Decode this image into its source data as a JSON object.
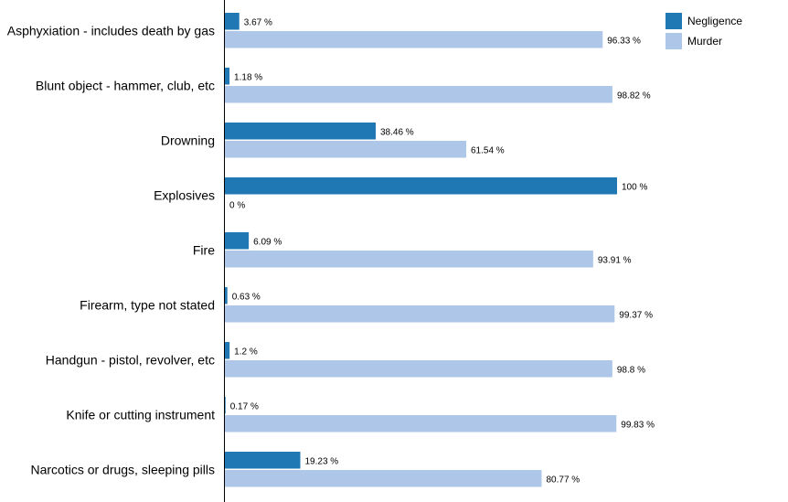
{
  "chart_data": {
    "type": "bar",
    "orientation": "horizontal",
    "categories": [
      "Asphyxiation - includes death by gas",
      "Blunt object - hammer, club, etc",
      "Drowning",
      "Explosives",
      "Fire",
      "Firearm, type not stated",
      "Handgun - pistol, revolver, etc",
      "Knife or cutting instrument",
      "Narcotics or drugs, sleeping pills"
    ],
    "series": [
      {
        "name": "Negligence",
        "color": "#1f77b4",
        "values": [
          3.67,
          1.18,
          38.46,
          100,
          6.09,
          0.63,
          1.2,
          0.17,
          19.23
        ],
        "labels": [
          "3.67 %",
          "1.18 %",
          "38.46 %",
          "100 %",
          "6.09 %",
          "0.63 %",
          "1.2 %",
          "0.17 %",
          "19.23 %"
        ]
      },
      {
        "name": "Murder",
        "color": "#aec7e8",
        "values": [
          96.33,
          98.82,
          61.54,
          0,
          93.91,
          99.37,
          98.8,
          99.83,
          80.77
        ],
        "labels": [
          "96.33 %",
          "98.82 %",
          "61.54 %",
          "0 %",
          "93.91 %",
          "99.37 %",
          "98.8 %",
          "99.83 %",
          "80.77 %"
        ]
      }
    ],
    "xlim": [
      0,
      100
    ],
    "grid": false,
    "legend_position": "top-right"
  }
}
